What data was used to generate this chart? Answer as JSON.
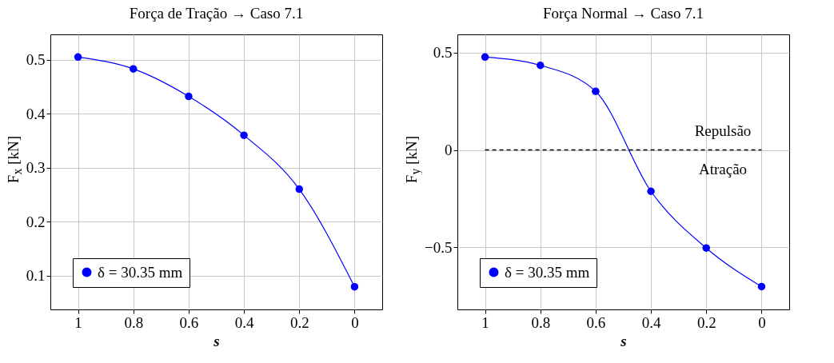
{
  "chart_data": [
    {
      "type": "line",
      "title": "Força de Tração → Caso 7.1",
      "xlabel": "s",
      "ylabel": "F$_{x}$ [kN]",
      "x": [
        1,
        0.8,
        0.6,
        0.4,
        0.2,
        0
      ],
      "series": [
        {
          "name": "δ = 30.35 mm",
          "color": "#0000ff",
          "values": [
            0.505,
            0.483,
            0.432,
            0.36,
            0.26,
            0.079
          ]
        }
      ],
      "xlim": [
        1.1,
        -0.1
      ],
      "xticks": [
        1,
        0.8,
        0.6,
        0.4,
        0.2,
        0
      ],
      "ylim": [
        0.037,
        0.547
      ],
      "yticks": [
        0.1,
        0.2,
        0.3,
        0.4,
        0.5
      ],
      "grid": true,
      "legend": "bottom left",
      "marker": "circle",
      "line_style": "solid"
    },
    {
      "type": "line",
      "title": "Força Normal → Caso 7.1",
      "xlabel": "s",
      "ylabel": "F$_{y}$ [kN]",
      "x": [
        1,
        0.8,
        0.6,
        0.4,
        0.2,
        0
      ],
      "series": [
        {
          "name": "δ = 30.35 mm",
          "color": "#0000ff",
          "values": [
            0.477,
            0.434,
            0.301,
            -0.212,
            -0.503,
            -0.701
          ]
        }
      ],
      "xlim": [
        1.1,
        -0.1
      ],
      "xticks": [
        1,
        0.8,
        0.6,
        0.4,
        0.2,
        0
      ],
      "ylim": [
        -0.818,
        0.593
      ],
      "yticks": [
        -0.5,
        0,
        0.5
      ],
      "ref_lines": [
        {
          "axis": "y",
          "value": 0,
          "color": "#000000",
          "line_style": "dashed"
        }
      ],
      "annotations": [
        "Repulsão",
        "Atração"
      ],
      "grid": true,
      "legend": "bottom left",
      "marker": "circle",
      "line_style": "solid"
    }
  ]
}
